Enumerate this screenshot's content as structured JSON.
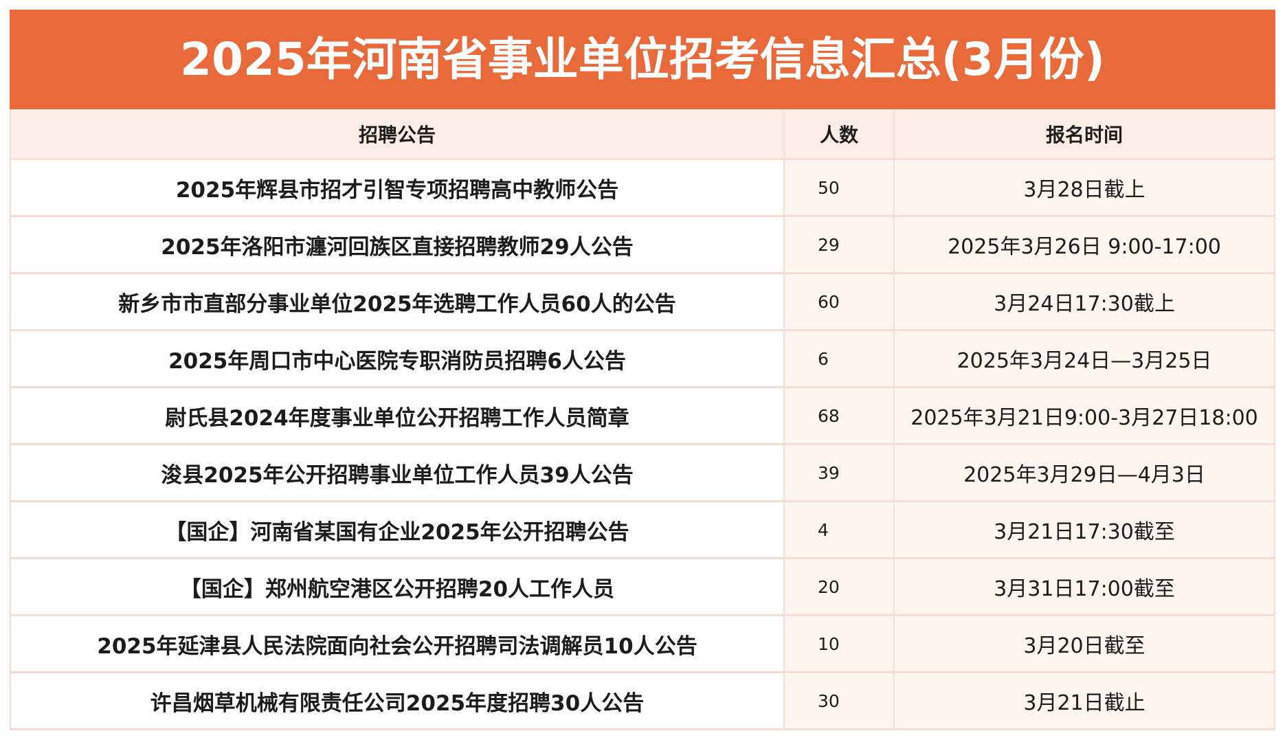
{
  "title": "2025年河南省事业单位招考信息汇总(3月份)",
  "colors": {
    "banner": "#E8693A",
    "header-bg": "#FCEEE6",
    "tint": "#FDF5F0",
    "line": "#F4DCD0"
  },
  "table": {
    "headers": {
      "notice": "招聘公告",
      "count": "人数",
      "time": "报名时间"
    },
    "rows": [
      {
        "notice": "2025年辉县市招才引智专项招聘高中教师公告",
        "count": "50",
        "time": "3月28日截上"
      },
      {
        "notice": "2025年洛阳市瀍河回族区直接招聘教师29人公告",
        "count": "29",
        "time": "2025年3月26日 9:00-17:00"
      },
      {
        "notice": "新乡市市直部分事业单位2025年选聘工作人员60人的公告",
        "count": "60",
        "time": "3月24日17:30截上"
      },
      {
        "notice": "2025年周口市中心医院专职消防员招聘6人公告",
        "count": "6",
        "time": "2025年3月24日—3月25日"
      },
      {
        "notice": "尉氏县2024年度事业单位公开招聘工作人员简章",
        "count": "68",
        "time": "2025年3月21日9:00-3月27日18:00"
      },
      {
        "notice": "浚县2025年公开招聘事业单位工作人员39人公告",
        "count": "39",
        "time": "2025年3月29日—4月3日"
      },
      {
        "notice": "【国企】河南省某国有企业2025年公开招聘公告",
        "count": "4",
        "time": "3月21日17:30截至"
      },
      {
        "notice": "【国企】郑州航空港区公开招聘20人工作人员",
        "count": "20",
        "time": "3月31日17:00截至"
      },
      {
        "notice": "2025年延津县人民法院面向社会公开招聘司法调解员10人公告",
        "count": "10",
        "time": "3月20日截至"
      },
      {
        "notice": "许昌烟草机械有限责任公司2025年度招聘30人公告",
        "count": "30",
        "time": "3月21日截止"
      }
    ]
  }
}
